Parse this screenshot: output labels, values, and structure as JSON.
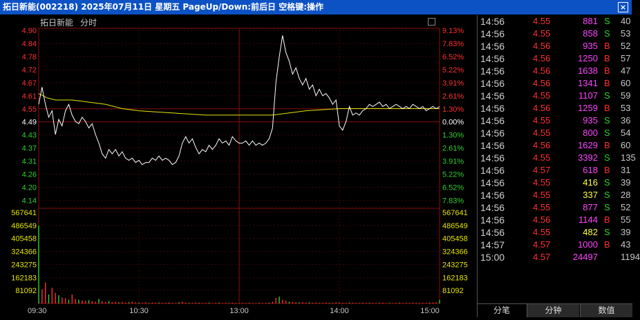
{
  "title": "拓日新能(002218)  2025年07月11日 星期五 PageUp/Down:前后日 空格键:操作",
  "close_glyph": "×",
  "chart_header": {
    "name": "拓日新能",
    "period": "分时"
  },
  "chart_data": {
    "type": "line",
    "title": "",
    "price_axis": {
      "ticks": [
        "4.90",
        "4.84",
        "4.78",
        "4.72",
        "4.67",
        "4.61",
        "4.55",
        "4.49",
        "4.43",
        "4.37",
        "4.31",
        "4.26",
        "4.20",
        "4.14"
      ],
      "ylim": [
        4.11,
        4.93
      ]
    },
    "pct_axis": [
      "9.13%",
      "7.83%",
      "6.52%",
      "5.22%",
      "3.91%",
      "2.61%",
      "1.30%",
      "0.00%",
      "1.30%",
      "2.61%",
      "3.91%",
      "5.22%",
      "6.52%",
      "7.83%"
    ],
    "volume_axis": [
      "567641",
      "486549",
      "405458",
      "324366",
      "243275",
      "162183",
      "81092"
    ],
    "volume_max": 608000,
    "x_labels": [
      "09:30",
      "10:30",
      "13:00",
      "14:00",
      "15:00"
    ],
    "total_minutes": 240,
    "price": {
      "minutes": [
        0,
        2,
        4,
        6,
        8,
        10,
        12,
        14,
        16,
        18,
        20,
        22,
        24,
        26,
        28,
        30,
        32,
        34,
        36,
        38,
        40,
        42,
        44,
        46,
        48,
        50,
        52,
        54,
        56,
        58,
        60,
        62,
        64,
        66,
        68,
        70,
        72,
        74,
        76,
        78,
        80,
        82,
        84,
        86,
        88,
        90,
        92,
        94,
        96,
        98,
        100,
        102,
        104,
        106,
        108,
        110,
        112,
        114,
        116,
        118,
        120,
        122,
        124,
        126,
        128,
        130,
        132,
        134,
        136,
        138,
        140,
        142,
        144,
        146,
        148,
        150,
        152,
        154,
        156,
        158,
        160,
        162,
        164,
        166,
        168,
        170,
        172,
        174,
        176,
        178,
        180,
        182,
        184,
        186,
        188,
        190,
        192,
        194,
        196,
        198,
        200,
        202,
        204,
        206,
        208,
        210,
        212,
        214,
        216,
        218,
        220,
        222,
        224,
        226,
        228,
        230,
        232,
        234,
        236,
        238,
        240
      ],
      "values": [
        4.58,
        4.66,
        4.58,
        4.52,
        4.55,
        4.44,
        4.51,
        4.48,
        4.55,
        4.58,
        4.53,
        4.5,
        4.49,
        4.52,
        4.5,
        4.47,
        4.49,
        4.44,
        4.4,
        4.35,
        4.33,
        4.37,
        4.35,
        4.37,
        4.34,
        4.36,
        4.33,
        4.32,
        4.33,
        4.31,
        4.32,
        4.3,
        4.31,
        4.31,
        4.33,
        4.32,
        4.34,
        4.32,
        4.33,
        4.32,
        4.3,
        4.31,
        4.34,
        4.4,
        4.43,
        4.4,
        4.42,
        4.38,
        4.35,
        4.37,
        4.36,
        4.39,
        4.37,
        4.39,
        4.42,
        4.4,
        4.41,
        4.39,
        4.43,
        4.41,
        4.4,
        4.4,
        4.41,
        4.39,
        4.41,
        4.39,
        4.4,
        4.39,
        4.4,
        4.42,
        4.47,
        4.68,
        4.8,
        4.9,
        4.82,
        4.78,
        4.72,
        4.75,
        4.7,
        4.67,
        4.7,
        4.65,
        4.67,
        4.62,
        4.65,
        4.62,
        4.63,
        4.61,
        4.58,
        4.6,
        4.48,
        4.46,
        4.5,
        4.57,
        4.53,
        4.54,
        4.53,
        4.55,
        4.56,
        4.58,
        4.57,
        4.58,
        4.59,
        4.57,
        4.58,
        4.56,
        4.57,
        4.58,
        4.57,
        4.56,
        4.57,
        4.56,
        4.58,
        4.57,
        4.56,
        4.57,
        4.55,
        4.56,
        4.57,
        4.56,
        4.57
      ]
    },
    "average": {
      "minutes": [
        0,
        5,
        10,
        20,
        30,
        40,
        50,
        60,
        70,
        80,
        100,
        120,
        140,
        150,
        160,
        180,
        200,
        220,
        230,
        240
      ],
      "values": [
        4.63,
        4.61,
        4.6,
        4.6,
        4.59,
        4.58,
        4.56,
        4.55,
        4.545,
        4.54,
        4.53,
        4.53,
        4.53,
        4.54,
        4.55,
        4.56,
        4.56,
        4.56,
        4.56,
        4.56
      ]
    },
    "volume": [
      520000,
      95000,
      140000,
      60000,
      105000,
      70000,
      55000,
      40000,
      35000,
      25000,
      60000,
      30000,
      25000,
      20000,
      18000,
      22000,
      15000,
      12000,
      30000,
      14000,
      10000,
      16000,
      9000,
      12000,
      8000,
      10000,
      6000,
      9000,
      12000,
      7000,
      6000,
      5000,
      8000,
      4000,
      6000,
      5000,
      7000,
      4000,
      5000,
      6000,
      4000,
      3000,
      8000,
      12000,
      6000,
      5000,
      4000,
      6000,
      5000,
      3000,
      4000,
      6000,
      3000,
      4000,
      5000,
      3000,
      4000,
      3000,
      5000,
      4000,
      3000,
      4000,
      3000,
      4000,
      3000,
      2000,
      4000,
      3000,
      4000,
      6000,
      12000,
      38000,
      46000,
      25000,
      18000,
      12000,
      10000,
      8000,
      7000,
      9000,
      6000,
      8000,
      5000,
      6000,
      4000,
      5000,
      6000,
      4000,
      5000,
      8000,
      6000,
      5000,
      4000,
      6000,
      5000,
      4000,
      3000,
      6000,
      4000,
      5000,
      4000,
      3000,
      4000,
      5000,
      3000,
      4000,
      3000,
      4000,
      5000,
      3000,
      4000,
      3000,
      5000,
      4000,
      3000,
      4000,
      5000,
      6000,
      7000,
      8000,
      24000
    ]
  },
  "ticks": [
    {
      "time": "14:56",
      "price": "4.55",
      "vol": "881",
      "dir": "S",
      "cnt": "40"
    },
    {
      "time": "14:56",
      "price": "4.55",
      "vol": "858",
      "dir": "S",
      "cnt": "53"
    },
    {
      "time": "14:56",
      "price": "4.56",
      "vol": "935",
      "dir": "B",
      "cnt": "52"
    },
    {
      "time": "14:56",
      "price": "4.56",
      "vol": "1250",
      "dir": "B",
      "cnt": "57"
    },
    {
      "time": "14:56",
      "price": "4.56",
      "vol": "1638",
      "dir": "B",
      "cnt": "47"
    },
    {
      "time": "14:56",
      "price": "4.56",
      "vol": "1341",
      "dir": "B",
      "cnt": "60"
    },
    {
      "time": "14:56",
      "price": "4.55",
      "vol": "1107",
      "dir": "S",
      "cnt": "59"
    },
    {
      "time": "14:56",
      "price": "4.56",
      "vol": "1259",
      "dir": "B",
      "cnt": "53"
    },
    {
      "time": "14:56",
      "price": "4.55",
      "vol": "935",
      "dir": "S",
      "cnt": "36"
    },
    {
      "time": "14:56",
      "price": "4.55",
      "vol": "800",
      "dir": "S",
      "cnt": "54"
    },
    {
      "time": "14:56",
      "price": "4.56",
      "vol": "1629",
      "dir": "B",
      "cnt": "60"
    },
    {
      "time": "14:56",
      "price": "4.55",
      "vol": "3392",
      "dir": "S",
      "cnt": "135"
    },
    {
      "time": "14:56",
      "price": "4.57",
      "vol": "618",
      "dir": "B",
      "cnt": "31"
    },
    {
      "time": "14:56",
      "price": "4.55",
      "vol": "416",
      "dir": "S",
      "cnt": "39"
    },
    {
      "time": "14:56",
      "price": "4.55",
      "vol": "337",
      "dir": "S",
      "cnt": "28"
    },
    {
      "time": "14:56",
      "price": "4.55",
      "vol": "877",
      "dir": "S",
      "cnt": "52"
    },
    {
      "time": "14:56",
      "price": "4.56",
      "vol": "1144",
      "dir": "B",
      "cnt": "55"
    },
    {
      "time": "14:56",
      "price": "4.55",
      "vol": "482",
      "dir": "S",
      "cnt": "39"
    },
    {
      "time": "14:57",
      "price": "4.57",
      "vol": "1000",
      "dir": "B",
      "cnt": "43"
    },
    {
      "time": "15:00",
      "price": "4.57",
      "vol": "24497",
      "dir": "",
      "cnt": "1194"
    }
  ],
  "colors": {
    "up": "#ff3030",
    "down": "#30d030",
    "price_line": "#ffffff",
    "avg_line": "#e6e600",
    "vol_small": "#ffff40",
    "vol_mid": "#ff44ff",
    "vol_big": "#ff44ff"
  },
  "tabs": [
    {
      "label": "分笔"
    },
    {
      "label": "分钟"
    },
    {
      "label": "数值"
    }
  ]
}
